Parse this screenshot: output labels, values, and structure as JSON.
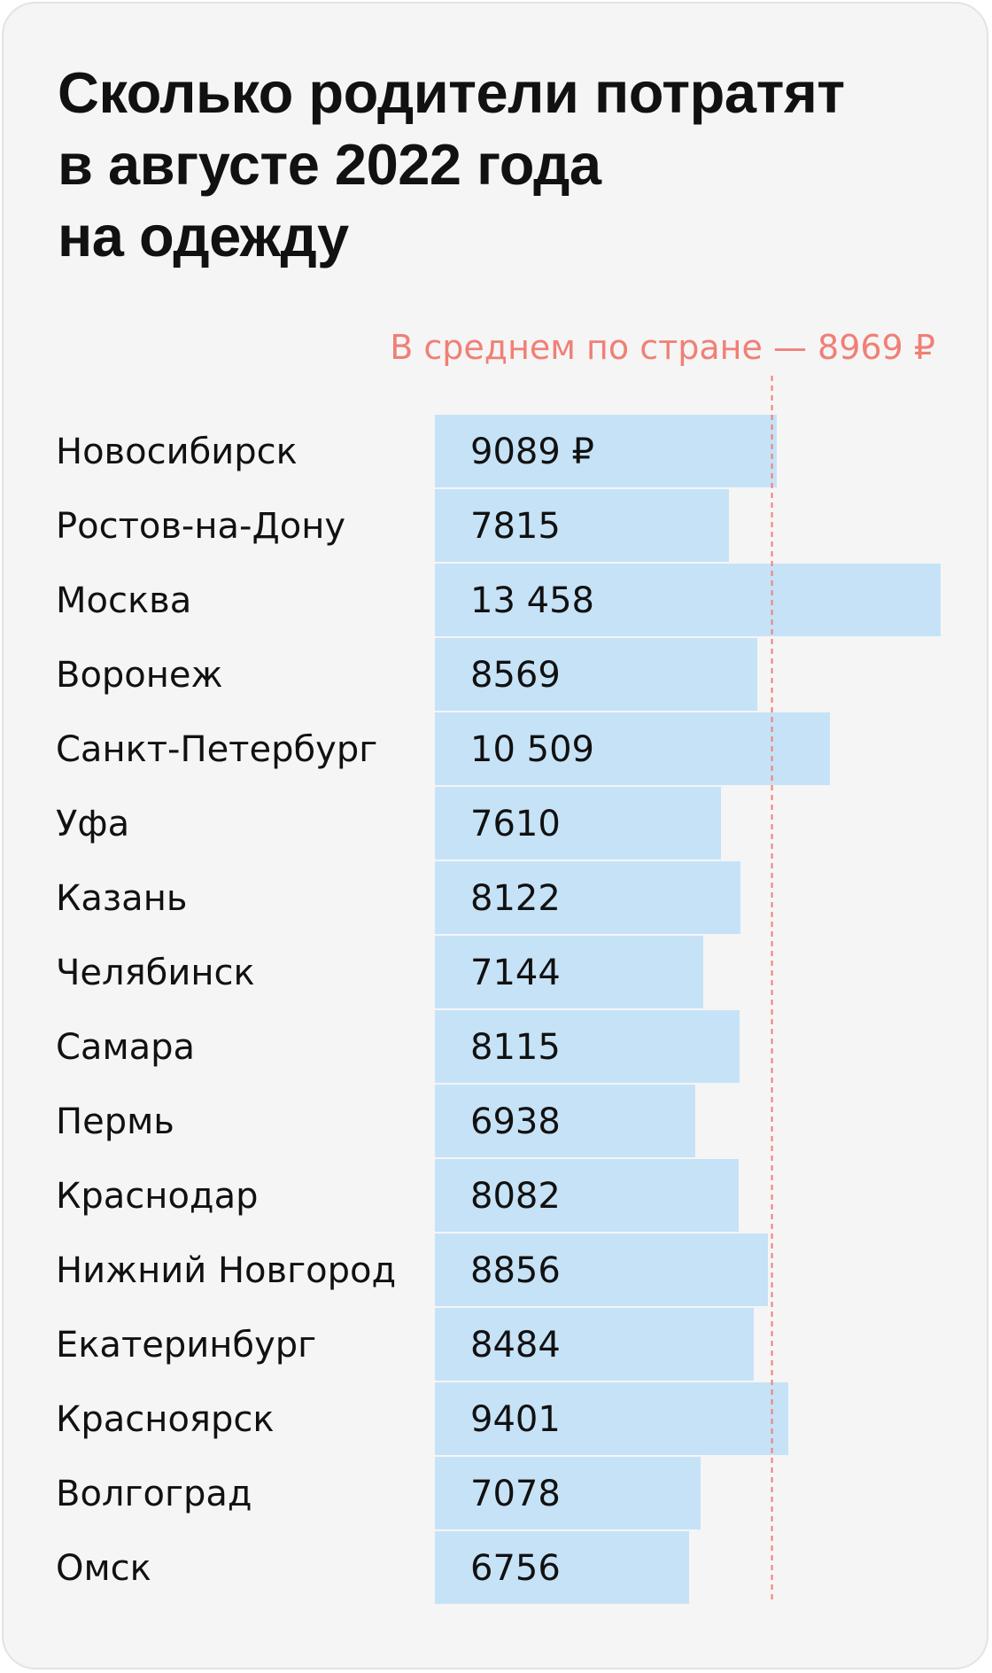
{
  "title": "Сколько родители потратят\nв августе 2022 года\nна одежду",
  "average": {
    "label": "В среднем по стране — 8969 ₽",
    "value": 8969,
    "color": "#f07f76"
  },
  "colors": {
    "bar": "#c6e2f7",
    "text": "#111111",
    "background": "#f5f5f5"
  },
  "chart_data": {
    "type": "bar",
    "orientation": "horizontal",
    "title": "Сколько родители потратят в августе 2022 года на одежду",
    "categories": [
      "Новосибирск",
      "Ростов-на-Дону",
      "Москва",
      "Воронеж",
      "Санкт-Петербург",
      "Уфа",
      "Казань",
      "Челябинск",
      "Самара",
      "Пермь",
      "Краснодар",
      "Нижний Новгород",
      "Екатеринбург",
      "Красноярск",
      "Волгоград",
      "Омск"
    ],
    "values": [
      9089,
      7815,
      13458,
      8569,
      10509,
      7610,
      8122,
      7144,
      8115,
      6938,
      8082,
      8856,
      8484,
      9401,
      7078,
      6756
    ],
    "value_labels": [
      "9089 ₽",
      "7815",
      "13 458",
      "8569",
      "10 509",
      "7610",
      "8122",
      "7144",
      "8115",
      "6938",
      "8082",
      "8856",
      "8484",
      "9401",
      "7078",
      "6756"
    ],
    "reference_line": {
      "label": "В среднем по стране — 8969 ₽",
      "value": 8969,
      "style": "dashed"
    },
    "xlim": [
      0,
      13458
    ],
    "grid": false,
    "legend": "none"
  }
}
